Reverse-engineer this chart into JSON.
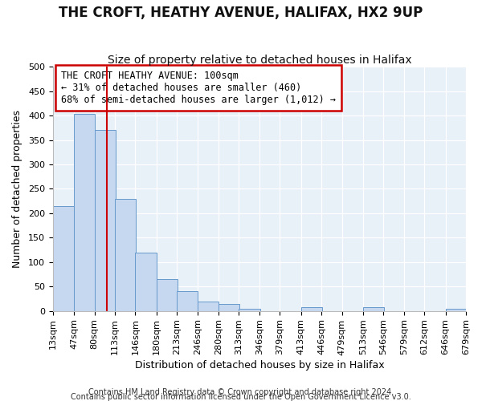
{
  "title": "THE CROFT, HEATHY AVENUE, HALIFAX, HX2 9UP",
  "subtitle": "Size of property relative to detached houses in Halifax",
  "xlabel": "Distribution of detached houses by size in Halifax",
  "ylabel": "Number of detached properties",
  "footer1": "Contains HM Land Registry data © Crown copyright and database right 2024.",
  "footer2": "Contains public sector information licensed under the Open Government Licence v3.0.",
  "annotation_line1": "THE CROFT HEATHY AVENUE: 100sqm",
  "annotation_line2": "← 31% of detached houses are smaller (460)",
  "annotation_line3": "68% of semi-detached houses are larger (1,012) →",
  "property_size": 100,
  "bin_edges": [
    13,
    47,
    80,
    113,
    146,
    180,
    213,
    246,
    280,
    313,
    346,
    379,
    413,
    446,
    479,
    513,
    546,
    579,
    612,
    646,
    679
  ],
  "bar_heights": [
    215,
    403,
    370,
    230,
    120,
    65,
    40,
    20,
    15,
    5,
    0,
    0,
    8,
    0,
    0,
    8,
    0,
    0,
    0,
    5
  ],
  "bar_color": "#c5d8f0",
  "bar_edge_color": "#6699cc",
  "red_line_color": "#cc0000",
  "fig_bg_color": "#ffffff",
  "plot_bg_color": "#e8f0f8",
  "grid_color": "#ffffff",
  "annotation_box_color": "#ffffff",
  "annotation_box_edge": "#cc0000",
  "ylim": [
    0,
    500
  ],
  "title_fontsize": 12,
  "subtitle_fontsize": 10,
  "axis_label_fontsize": 9,
  "tick_fontsize": 8,
  "annotation_fontsize": 8.5,
  "footer_fontsize": 7
}
